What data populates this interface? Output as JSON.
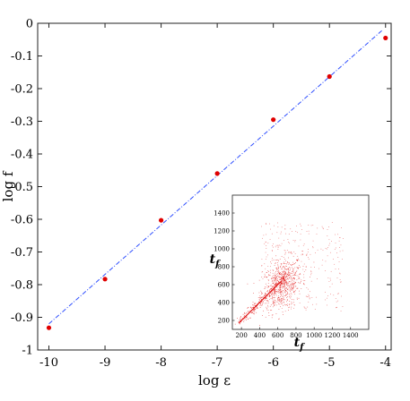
{
  "chart_data": [
    {
      "type": "scatter",
      "title": "",
      "xlabel": "log ε",
      "ylabel": "log f",
      "xlim": [
        -10.2,
        -3.9
      ],
      "ylim": [
        -1,
        0
      ],
      "x_ticks": [
        -10,
        -9,
        -8,
        -7,
        -6,
        -5,
        -4
      ],
      "x_tick_labels": [
        "-10",
        "-9",
        "-8",
        "-7",
        "-6",
        "-5",
        "-4"
      ],
      "y_ticks": [
        0,
        -0.1,
        -0.2,
        -0.3,
        -0.4,
        -0.5,
        -0.6,
        -0.7,
        -0.8,
        -0.9,
        -1
      ],
      "y_tick_labels": [
        "0",
        "-0.1",
        "-0.2",
        "-0.3",
        "-0.4",
        "-0.5",
        "-0.6",
        "-0.7",
        "-0.8",
        "-0.9",
        "-1"
      ],
      "grid": false,
      "series": [
        {
          "type": "scatter",
          "color": "#e00000",
          "x": [
            -10,
            -9,
            -8,
            -7,
            -6,
            -5,
            -4
          ],
          "y": [
            -0.932,
            -0.783,
            -0.603,
            -0.46,
            -0.295,
            -0.163,
            -0.045
          ]
        },
        {
          "type": "line",
          "style": "dash-dot",
          "color": "#2f4fff",
          "x": [
            -10,
            -4.05
          ],
          "y": [
            -0.92,
            -0.02
          ]
        }
      ]
    },
    {
      "type": "scatter",
      "title": "",
      "xlabel": "t_f",
      "ylabel": "t_f",
      "xlim": [
        100,
        1600
      ],
      "ylim": [
        100,
        1600
      ],
      "x_ticks": [
        200,
        400,
        600,
        800,
        1000,
        1200,
        1400
      ],
      "x_tick_labels": [
        "200",
        "400",
        "600",
        "800",
        "1000",
        "1200",
        "1400"
      ],
      "y_ticks": [
        200,
        400,
        600,
        800,
        1000,
        1200,
        1400
      ],
      "y_tick_labels": [
        "200",
        "400",
        "600",
        "800",
        "1000",
        "1200",
        "1400"
      ],
      "grid": false,
      "point_color": "#e01010",
      "diagonal_color": "#e01010"
    }
  ]
}
